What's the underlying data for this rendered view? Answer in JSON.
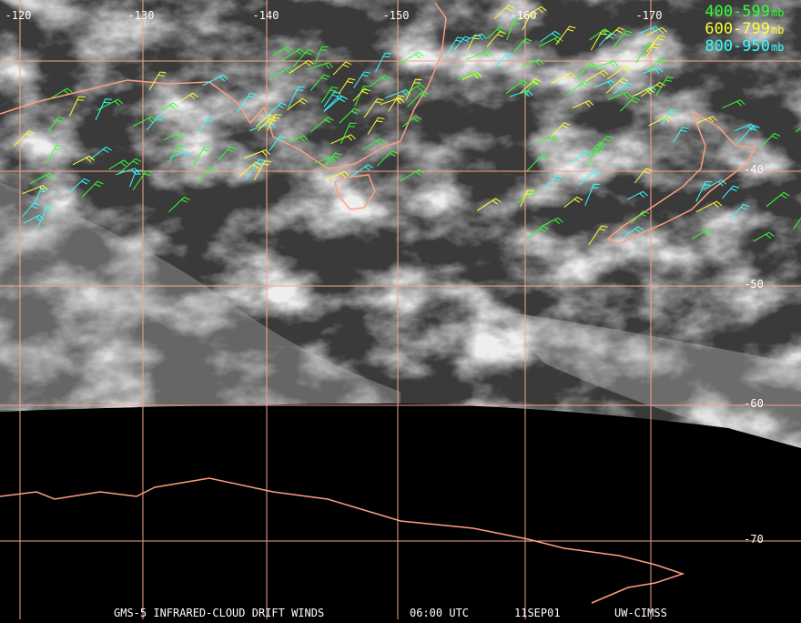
{
  "map": {
    "lon_labels": [
      "-120",
      "-130",
      "-140",
      "-150",
      "-160",
      "-170"
    ],
    "lat_labels": [
      "-40",
      "-50",
      "-60",
      "-70"
    ],
    "legend": [
      {
        "range": "400-599",
        "unit": "mb",
        "color": "#33ff33"
      },
      {
        "range": "600-799",
        "unit": "mb",
        "color": "#ffff33"
      },
      {
        "range": "800-950",
        "unit": "mb",
        "color": "#33ffff"
      }
    ],
    "footer": [
      "GMS-5 INFRARED-CLOUD DRIFT WINDS",
      "06:00 UTC",
      "11SEP01",
      "UW-CIMSS"
    ]
  }
}
